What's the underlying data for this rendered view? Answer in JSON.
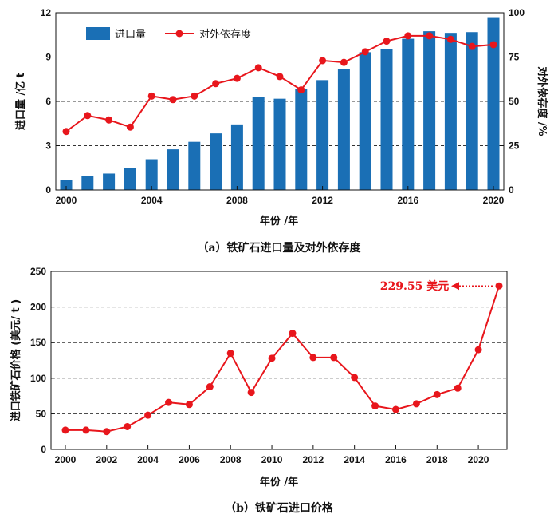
{
  "chart_data": [
    {
      "type": "bar+line",
      "x": [
        2000,
        2001,
        2002,
        2003,
        2004,
        2005,
        2006,
        2007,
        2008,
        2009,
        2010,
        2011,
        2012,
        2013,
        2014,
        2015,
        2016,
        2017,
        2018,
        2019,
        2020
      ],
      "xticks": [
        "2000",
        "2004",
        "2008",
        "2012",
        "2016",
        "2020"
      ],
      "series": [
        {
          "name": "进口量",
          "kind": "bar",
          "axis": "left",
          "color": "#1a6fb5",
          "values": [
            0.7,
            0.92,
            1.11,
            1.48,
            2.08,
            2.75,
            3.26,
            3.83,
            4.44,
            6.28,
            6.18,
            6.86,
            7.44,
            8.19,
            9.33,
            9.52,
            10.24,
            10.75,
            10.64,
            10.69,
            11.7
          ]
        },
        {
          "name": "对外依存度",
          "kind": "line",
          "axis": "right",
          "color": "#e8161c",
          "values": [
            33,
            42,
            39.5,
            35.5,
            53,
            51,
            53,
            60,
            63,
            69,
            64,
            56.5,
            73,
            72,
            78,
            84,
            87,
            87,
            85,
            81,
            82
          ]
        }
      ],
      "ylabel_left": "进口量 /亿 t",
      "ylabel_right": "对外依存度 /%",
      "ylim_left": [
        0,
        12
      ],
      "yticks_left": [
        "0",
        "3",
        "6",
        "9",
        "12"
      ],
      "ylim_right": [
        0,
        100
      ],
      "yticks_right": [
        "0",
        "25",
        "50",
        "75",
        "100"
      ],
      "xlabel": "年份 /年",
      "grid": "horizontal dashed",
      "legend_placement": "top-left",
      "caption": "（a）铁矿石进口量及对外依存度"
    },
    {
      "type": "line",
      "x": [
        2000,
        2001,
        2002,
        2003,
        2004,
        2005,
        2006,
        2007,
        2008,
        2009,
        2010,
        2011,
        2012,
        2013,
        2014,
        2015,
        2016,
        2017,
        2018,
        2019,
        2020,
        2021
      ],
      "xticks": [
        "2000",
        "2002",
        "2004",
        "2006",
        "2008",
        "2010",
        "2012",
        "2014",
        "2016",
        "2018",
        "2020"
      ],
      "series": [
        {
          "name": "",
          "color": "#e8161c",
          "values": [
            27,
            27,
            25,
            32,
            48,
            66,
            63,
            88,
            135,
            80,
            128,
            163,
            129,
            129,
            101,
            61,
            56,
            64,
            77,
            86,
            140,
            229.55
          ]
        }
      ],
      "ylabel": "进口铁矿石价格 (美元/ t )",
      "ylim": [
        0,
        250
      ],
      "yticks": [
        "0",
        "50",
        "100",
        "150",
        "200",
        "250"
      ],
      "xlabel": "年份 /年",
      "grid": "horizontal dashed",
      "annotation": "229.55 美元",
      "caption": "（b）铁矿石进口价格"
    }
  ]
}
